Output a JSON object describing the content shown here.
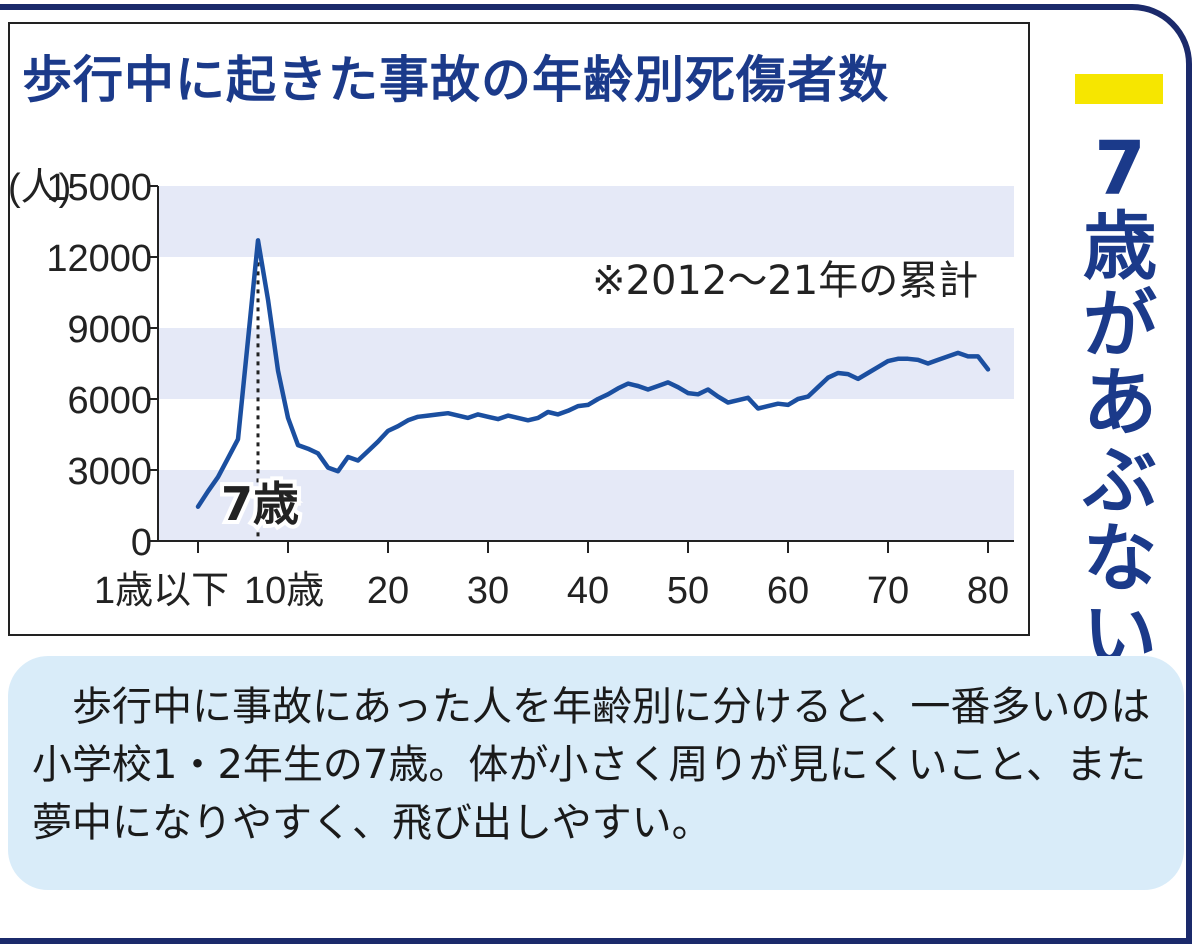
{
  "title": "歩行中に起きた事故の年齢別死傷者数",
  "note": "※2012～21年の累計",
  "annotation": "7歳",
  "side_heading": [
    "7",
    "歳",
    "が",
    "あ",
    "ぶ",
    "な",
    "い"
  ],
  "caption": "歩行中に事故にあった人を年齢別に分けると、一番多いのは小学校1・2年生の7歳。体が小さく周りが見にくいこと、また夢中になりやすく、飛び出しやすい。",
  "colors": {
    "line": "#1b4fa0",
    "band": "#e5e9f7",
    "title": "#1b3a8a",
    "accent": "#f6e600",
    "caption_bg": "#d9ecf9"
  },
  "chart_data": {
    "type": "line",
    "ylabel": "(人)",
    "ylim": [
      0,
      15000
    ],
    "yticks": [
      0,
      3000,
      6000,
      9000,
      12000,
      15000
    ],
    "xlim": [
      1,
      80
    ],
    "xticks": [
      {
        "value": 1,
        "label": "1歳以下"
      },
      {
        "value": 10,
        "label": "10歳"
      },
      {
        "value": 20,
        "label": "20"
      },
      {
        "value": 30,
        "label": "30"
      },
      {
        "value": 40,
        "label": "40"
      },
      {
        "value": 50,
        "label": "50"
      },
      {
        "value": 60,
        "label": "60"
      },
      {
        "value": 70,
        "label": "70"
      },
      {
        "value": 80,
        "label": "80"
      }
    ],
    "highlight_x": 7,
    "x": [
      1,
      2,
      3,
      4,
      5,
      6,
      7,
      8,
      9,
      10,
      11,
      12,
      13,
      14,
      15,
      16,
      17,
      18,
      19,
      20,
      21,
      22,
      23,
      24,
      25,
      26,
      27,
      28,
      29,
      30,
      31,
      32,
      33,
      34,
      35,
      36,
      37,
      38,
      39,
      40,
      41,
      42,
      43,
      44,
      45,
      46,
      47,
      48,
      49,
      50,
      51,
      52,
      53,
      54,
      55,
      56,
      57,
      58,
      59,
      60,
      61,
      62,
      63,
      64,
      65,
      66,
      67,
      68,
      69,
      70,
      71,
      72,
      73,
      74,
      75,
      76,
      77,
      78,
      79,
      80
    ],
    "values": [
      1450,
      2100,
      2700,
      3500,
      4300,
      8500,
      12700,
      10200,
      7200,
      5200,
      4050,
      3900,
      3700,
      3100,
      2950,
      3550,
      3400,
      3800,
      4200,
      4650,
      4850,
      5100,
      5250,
      5300,
      5350,
      5400,
      5300,
      5200,
      5350,
      5250,
      5150,
      5300,
      5200,
      5100,
      5200,
      5450,
      5350,
      5500,
      5700,
      5750,
      6000,
      6200,
      6450,
      6650,
      6550,
      6400,
      6550,
      6700,
      6500,
      6250,
      6200,
      6400,
      6100,
      5850,
      5950,
      6050,
      5600,
      5700,
      5800,
      5750,
      6000,
      6100,
      6500,
      6900,
      7100,
      7050,
      6850,
      7100,
      7350,
      7600,
      7700,
      7700,
      7650,
      7500,
      7650,
      7800,
      7950,
      7800,
      7800,
      7250
    ]
  }
}
